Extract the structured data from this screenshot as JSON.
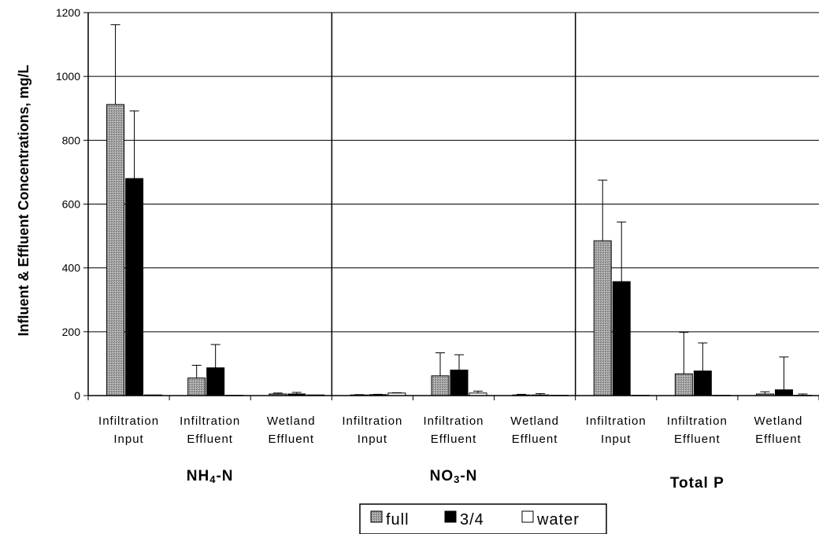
{
  "chart_data": {
    "type": "bar",
    "ylabel": "Influent & Effluent Concentrations, mg/L",
    "ylim": [
      0,
      1200
    ],
    "yticks": [
      0,
      200,
      400,
      600,
      800,
      1000,
      1200
    ],
    "grid": true,
    "legend_position": "bottom-center",
    "groups": [
      {
        "label": "NH",
        "subscript": "4",
        "suffix": "-N",
        "categories": [
          [
            "Infiltration",
            "Input"
          ],
          [
            "Infiltration",
            "Effluent"
          ],
          [
            "Wetland",
            "Effluent"
          ]
        ]
      },
      {
        "label": "NO",
        "subscript": "3",
        "suffix": "-N",
        "categories": [
          [
            "Infiltration",
            "Input"
          ],
          [
            "Infiltration",
            "Effluent"
          ],
          [
            "Wetland",
            "Effluent"
          ]
        ]
      },
      {
        "label": "Total P",
        "subscript": "",
        "suffix": "",
        "categories": [
          [
            "Infiltration",
            "Input"
          ],
          [
            "Infiltration",
            "Effluent"
          ],
          [
            "Wetland",
            "Effluent"
          ]
        ]
      }
    ],
    "series": [
      {
        "name": "full",
        "color": "#9a9a9a",
        "pattern": "stipple",
        "values": [
          912,
          55,
          5,
          2,
          62,
          2,
          485,
          68,
          5
        ],
        "error": [
          250,
          40,
          3,
          1,
          72,
          2,
          190,
          130,
          7
        ]
      },
      {
        "name": "3/4",
        "color": "#000000",
        "pattern": "solid",
        "values": [
          680,
          87,
          5,
          3,
          80,
          2,
          357,
          77,
          18
        ],
        "error": [
          212,
          73,
          5,
          1,
          48,
          4,
          187,
          88,
          103
        ]
      },
      {
        "name": "water",
        "color": "#ffffff",
        "pattern": "outline",
        "values": [
          2,
          1,
          2,
          8,
          8,
          1,
          1,
          1,
          1
        ],
        "error": [
          0,
          0,
          0,
          1,
          6,
          0,
          0,
          0,
          4
        ]
      }
    ]
  }
}
